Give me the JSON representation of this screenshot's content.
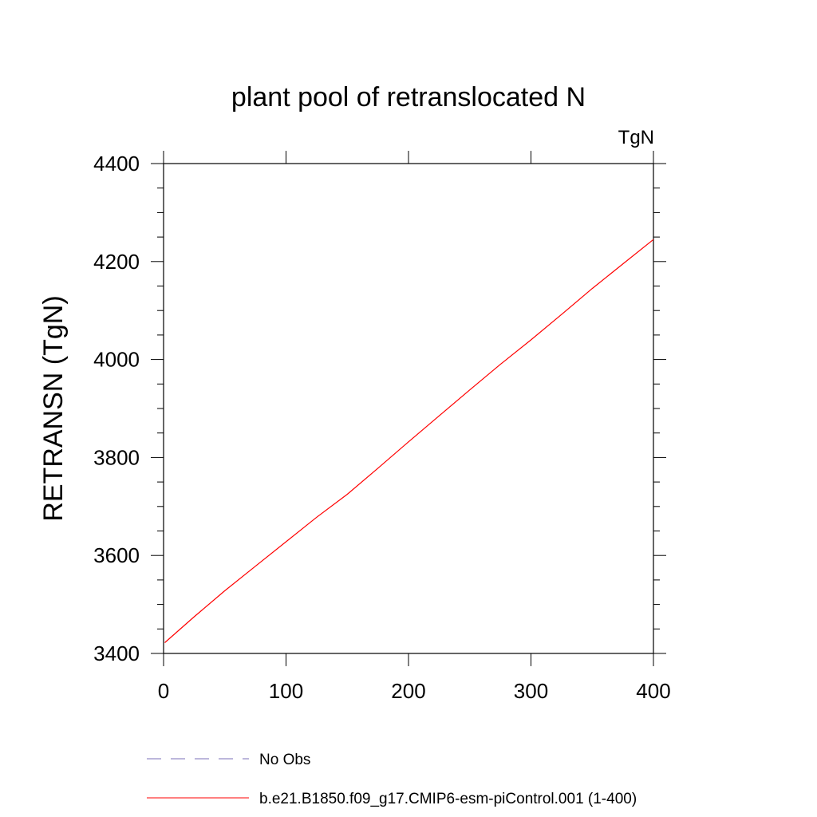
{
  "chart_data": {
    "type": "line",
    "title": "plant pool of retranslocated N",
    "units_label": "TgN",
    "ylabel": "RETRANSN  (TgN)",
    "xlabel": "",
    "xlim": [
      0,
      400
    ],
    "ylim": [
      3400,
      4400
    ],
    "x_ticks": [
      0,
      100,
      200,
      300,
      400
    ],
    "y_ticks": [
      3400,
      3600,
      3800,
      4000,
      4200,
      4400
    ],
    "x_tick_labels": [
      "0",
      "100",
      "200",
      "300",
      "400"
    ],
    "y_tick_labels": [
      "3400",
      "3600",
      "3800",
      "4000",
      "4200",
      "4400"
    ],
    "grid": false,
    "legend_position": "bottom",
    "series": [
      {
        "name": "b.e21.B1850.f09_g17.CMIP6-esm-piControl.001 (1-400)",
        "color": "#ff0000",
        "style": "solid",
        "x": [
          1,
          25,
          50,
          75,
          100,
          125,
          150,
          175,
          200,
          225,
          250,
          275,
          300,
          325,
          350,
          375,
          400
        ],
        "values": [
          3422,
          3475,
          3528,
          3578,
          3628,
          3678,
          3725,
          3778,
          3832,
          3885,
          3938,
          3990,
          4040,
          4092,
          4145,
          4195,
          4245
        ]
      }
    ],
    "legend": [
      {
        "label": "No Obs",
        "color": "#7b6fb8",
        "style": "dashed"
      },
      {
        "label": "b.e21.B1850.f09_g17.CMIP6-esm-piControl.001 (1-400)",
        "color": "#ff0000",
        "style": "solid"
      }
    ]
  }
}
